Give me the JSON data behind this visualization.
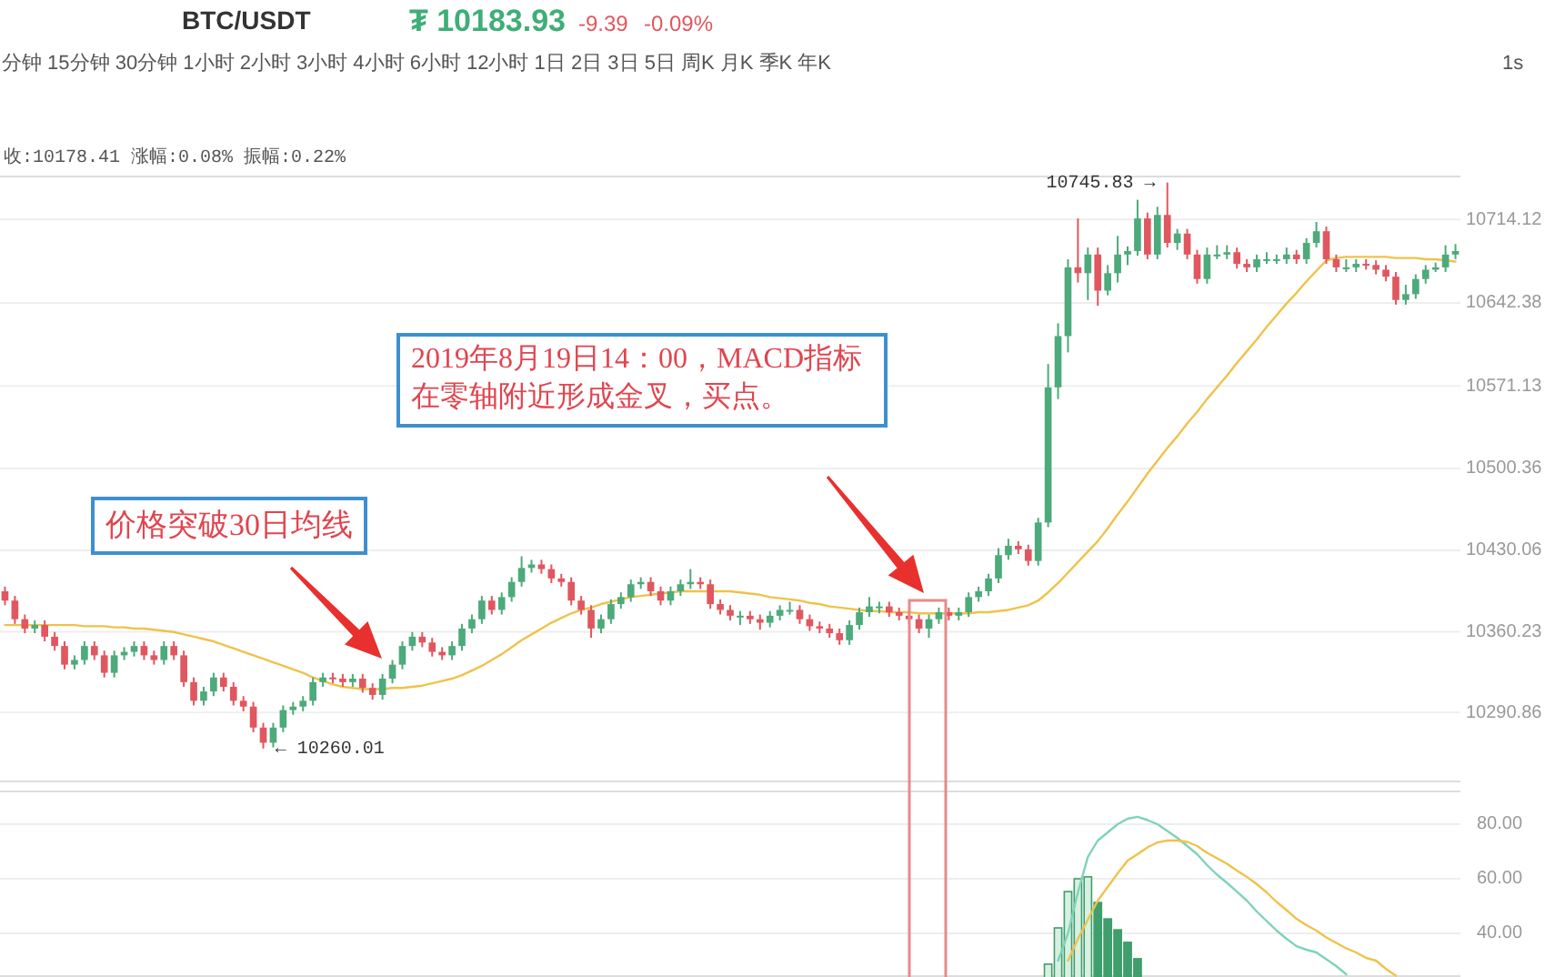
{
  "chart_data": [
    {
      "type": "candlestick",
      "title": "BTC/USDT",
      "categories": [
        null,
        null,
        null,
        null,
        null,
        null,
        null,
        null,
        null,
        null,
        null,
        null,
        null,
        null,
        null,
        null,
        null,
        null,
        null,
        null,
        null,
        null,
        null,
        null,
        null,
        null,
        null,
        null,
        null,
        null,
        null,
        null,
        null,
        null,
        null,
        null,
        null,
        null,
        null,
        null,
        null,
        null,
        null,
        null,
        null,
        null,
        null,
        null,
        null,
        null,
        null,
        null,
        null,
        null,
        null,
        null,
        null,
        null,
        null,
        null,
        null,
        null,
        null,
        null,
        null,
        null,
        null,
        null,
        null,
        null,
        null,
        null,
        null,
        null,
        null,
        null,
        null,
        null,
        null,
        null,
        null,
        null,
        null,
        null,
        null,
        null,
        null,
        null,
        null,
        null,
        null,
        null,
        null,
        null,
        null,
        null,
        null,
        null,
        null,
        null,
        null,
        null,
        null,
        null,
        null,
        null,
        null,
        null,
        null,
        null,
        null,
        null,
        null,
        null,
        null,
        null,
        null,
        null,
        null,
        null,
        null,
        null,
        null,
        null,
        null,
        null,
        null,
        null,
        null,
        null,
        null,
        null,
        null,
        null,
        null,
        null,
        null,
        null,
        null,
        null,
        null,
        null,
        null,
        null,
        null,
        null,
        null
      ],
      "ohlc": [
        [
          10395,
          10399,
          10383,
          10387
        ],
        [
          10387,
          10391,
          10367,
          10371
        ],
        [
          10371,
          10375,
          10359,
          10363
        ],
        [
          10363,
          10370,
          10359,
          10366
        ],
        [
          10366,
          10370,
          10352,
          10356
        ],
        [
          10356,
          10360,
          10344,
          10348
        ],
        [
          10348,
          10352,
          10328,
          10332
        ],
        [
          10332,
          10340,
          10328,
          10336
        ],
        [
          10336,
          10352,
          10332,
          10348
        ],
        [
          10348,
          10352,
          10336,
          10340
        ],
        [
          10340,
          10344,
          10321,
          10325
        ],
        [
          10325,
          10344,
          10321,
          10340
        ],
        [
          10340,
          10347,
          10336,
          10343
        ],
        [
          10343,
          10352,
          10339,
          10348
        ],
        [
          10348,
          10352,
          10336,
          10340
        ],
        [
          10340,
          10344,
          10332,
          10336
        ],
        [
          10336,
          10352,
          10332,
          10348
        ],
        [
          10348,
          10352,
          10336,
          10340
        ],
        [
          10340,
          10344,
          10313,
          10317
        ],
        [
          10317,
          10321,
          10297,
          10301
        ],
        [
          10301,
          10313,
          10297,
          10309
        ],
        [
          10309,
          10325,
          10305,
          10321
        ],
        [
          10321,
          10325,
          10309,
          10313
        ],
        [
          10313,
          10317,
          10297,
          10301
        ],
        [
          10301,
          10305,
          10292,
          10296
        ],
        [
          10296,
          10300,
          10274,
          10278
        ],
        [
          10278,
          10282,
          10260.01,
          10265
        ],
        [
          10265,
          10282,
          10261,
          10278
        ],
        [
          10278,
          10297,
          10274,
          10293
        ],
        [
          10293,
          10300,
          10289,
          10296
        ],
        [
          10296,
          10305,
          10292,
          10301
        ],
        [
          10301,
          10321,
          10297,
          10317
        ],
        [
          10317,
          10325,
          10313,
          10321
        ],
        [
          10321,
          10325,
          10316,
          10320
        ],
        [
          10320,
          10324,
          10313,
          10317
        ],
        [
          10317,
          10324,
          10313,
          10320
        ],
        [
          10320,
          10324,
          10308,
          10312
        ],
        [
          10312,
          10316,
          10302,
          10306
        ],
        [
          10306,
          10324,
          10302,
          10320
        ],
        [
          10320,
          10336,
          10316,
          10332
        ],
        [
          10332,
          10352,
          10328,
          10348
        ],
        [
          10348,
          10360,
          10344,
          10356
        ],
        [
          10356,
          10360,
          10347,
          10351
        ],
        [
          10351,
          10355,
          10339,
          10343
        ],
        [
          10343,
          10347,
          10336,
          10340
        ],
        [
          10340,
          10352,
          10336,
          10348
        ],
        [
          10348,
          10367,
          10344,
          10363
        ],
        [
          10363,
          10375,
          10359,
          10371
        ],
        [
          10371,
          10391,
          10367,
          10387
        ],
        [
          10387,
          10391,
          10375,
          10379
        ],
        [
          10379,
          10394,
          10375,
          10390
        ],
        [
          10390,
          10407,
          10386,
          10403
        ],
        [
          10403,
          10425,
          10399,
          10415
        ],
        [
          10415,
          10422,
          10411,
          10418
        ],
        [
          10418,
          10422,
          10410,
          10414
        ],
        [
          10414,
          10418,
          10402,
          10406
        ],
        [
          10406,
          10410,
          10399,
          10403
        ],
        [
          10403,
          10407,
          10383,
          10387
        ],
        [
          10387,
          10391,
          10375,
          10379
        ],
        [
          10379,
          10383,
          10355,
          10363
        ],
        [
          10363,
          10375,
          10359,
          10371
        ],
        [
          10371,
          10388,
          10367,
          10384
        ],
        [
          10384,
          10394,
          10380,
          10390
        ],
        [
          10390,
          10405,
          10386,
          10401
        ],
        [
          10401,
          10407,
          10397,
          10403
        ],
        [
          10403,
          10407,
          10391,
          10395
        ],
        [
          10395,
          10399,
          10383,
          10387
        ],
        [
          10387,
          10399,
          10383,
          10395
        ],
        [
          10395,
          10405,
          10391,
          10401
        ],
        [
          10401,
          10414,
          10397,
          10403
        ],
        [
          10403,
          10407,
          10397,
          10401
        ],
        [
          10401,
          10405,
          10380,
          10384
        ],
        [
          10384,
          10388,
          10375,
          10379
        ],
        [
          10379,
          10383,
          10370,
          10374
        ],
        [
          10374,
          10378,
          10366,
          10374
        ],
        [
          10374,
          10378,
          10367,
          10371
        ],
        [
          10371,
          10375,
          10362,
          10368
        ],
        [
          10368,
          10378,
          10364,
          10374
        ],
        [
          10374,
          10383,
          10370,
          10379
        ],
        [
          10379,
          10386,
          10375,
          10379
        ],
        [
          10379,
          10383,
          10367,
          10371
        ],
        [
          10371,
          10375,
          10361,
          10365
        ],
        [
          10365,
          10369,
          10359,
          10363
        ],
        [
          10363,
          10367,
          10355,
          10359
        ],
        [
          10359,
          10363,
          10349,
          10353
        ],
        [
          10353,
          10370,
          10349,
          10366
        ],
        [
          10366,
          10381,
          10362,
          10377
        ],
        [
          10377,
          10390,
          10373,
          10382
        ],
        [
          10382,
          10386,
          10376,
          10382
        ],
        [
          10382,
          10386,
          10373,
          10377
        ],
        [
          10377,
          10381,
          10370,
          10374
        ],
        [
          10374,
          10378,
          10367,
          10371
        ],
        [
          10371,
          10375,
          10359,
          10363
        ],
        [
          10363,
          10375,
          10355,
          10371
        ],
        [
          10371,
          10381,
          10367,
          10377
        ],
        [
          10377,
          10381,
          10370,
          10374
        ],
        [
          10374,
          10381,
          10370,
          10377
        ],
        [
          10377,
          10394,
          10373,
          10390
        ],
        [
          10390,
          10399,
          10386,
          10395
        ],
        [
          10395,
          10410,
          10391,
          10406
        ],
        [
          10406,
          10432,
          10402,
          10426
        ],
        [
          10426,
          10440,
          10422,
          10434
        ],
        [
          10434,
          10438,
          10427,
          10431
        ],
        [
          10431,
          10435,
          10417,
          10421
        ],
        [
          10421,
          10458,
          10417,
          10454
        ],
        [
          10454,
          10590,
          10450,
          10570
        ],
        [
          10570,
          10625,
          10560,
          10614
        ],
        [
          10614,
          10680,
          10600,
          10673
        ],
        [
          10673,
          10715,
          10660,
          10668
        ],
        [
          10668,
          10690,
          10645,
          10684
        ],
        [
          10684,
          10690,
          10640,
          10653
        ],
        [
          10653,
          10675,
          10649,
          10668
        ],
        [
          10668,
          10700,
          10660,
          10684
        ],
        [
          10684,
          10691,
          10675,
          10687
        ],
        [
          10687,
          10731,
          10683,
          10715
        ],
        [
          10715,
          10720,
          10680,
          10684
        ],
        [
          10684,
          10725,
          10680,
          10718
        ],
        [
          10718,
          10745.83,
          10690,
          10694
        ],
        [
          10694,
          10706,
          10688,
          10702
        ],
        [
          10702,
          10706,
          10680,
          10684
        ],
        [
          10684,
          10688,
          10659,
          10663
        ],
        [
          10663,
          10690,
          10659,
          10684
        ],
        [
          10684,
          10692,
          10680,
          10684
        ],
        [
          10684,
          10692,
          10680,
          10686
        ],
        [
          10686,
          10690,
          10672,
          10676
        ],
        [
          10676,
          10680,
          10669,
          10673
        ],
        [
          10673,
          10684,
          10669,
          10680
        ],
        [
          10680,
          10686,
          10676,
          10680
        ],
        [
          10680,
          10684,
          10676,
          10680
        ],
        [
          10680,
          10690,
          10676,
          10684
        ],
        [
          10684,
          10688,
          10676,
          10680
        ],
        [
          10680,
          10698,
          10676,
          10694
        ],
        [
          10694,
          10712,
          10690,
          10704
        ],
        [
          10704,
          10708,
          10676,
          10680
        ],
        [
          10680,
          10684,
          10669,
          10673
        ],
        [
          10673,
          10680,
          10669,
          10673
        ],
        [
          10673,
          10680,
          10669,
          10676
        ],
        [
          10676,
          10680,
          10671,
          10675
        ],
        [
          10675,
          10679,
          10667,
          10671
        ],
        [
          10671,
          10675,
          10661,
          10665
        ],
        [
          10665,
          10669,
          10641,
          10645
        ],
        [
          10645,
          10658,
          10641,
          10650
        ],
        [
          10650,
          10667,
          10646,
          10663
        ],
        [
          10663,
          10675,
          10659,
          10671
        ],
        [
          10671,
          10677,
          10669,
          10673
        ],
        [
          10673,
          10692,
          10669,
          10684
        ],
        [
          10684,
          10693,
          10680,
          10687
        ]
      ],
      "colors": [
        "#e0575f",
        "#e0575f",
        "#e0575f",
        "#4daa7a",
        "#e0575f",
        "#e0575f",
        "#e0575f",
        "#4daa7a",
        "#4daa7a",
        "#e0575f",
        "#e0575f",
        "#4daa7a",
        "#4daa7a",
        "#4daa7a",
        "#e0575f",
        "#e0575f",
        "#4daa7a",
        "#e0575f",
        "#e0575f",
        "#e0575f",
        "#4daa7a",
        "#4daa7a",
        "#e0575f",
        "#e0575f",
        "#e0575f",
        "#e0575f",
        "#e0575f",
        "#4daa7a",
        "#4daa7a",
        "#4daa7a",
        "#4daa7a",
        "#4daa7a",
        "#4daa7a",
        "#e0575f",
        "#e0575f",
        "#4daa7a",
        "#e0575f",
        "#e0575f",
        "#4daa7a",
        "#4daa7a",
        "#4daa7a",
        "#4daa7a",
        "#e0575f",
        "#e0575f",
        "#e0575f",
        "#4daa7a",
        "#4daa7a",
        "#4daa7a",
        "#4daa7a",
        "#e0575f",
        "#4daa7a",
        "#4daa7a",
        "#4daa7a",
        "#4daa7a",
        "#e0575f",
        "#e0575f",
        "#e0575f",
        "#e0575f",
        "#e0575f",
        "#e0575f",
        "#4daa7a",
        "#4daa7a",
        "#4daa7a",
        "#4daa7a",
        "#4daa7a",
        "#e0575f",
        "#e0575f",
        "#4daa7a",
        "#4daa7a",
        "#4daa7a",
        "#e0575f",
        "#e0575f",
        "#e0575f",
        "#e0575f",
        "#4daa7a",
        "#e0575f",
        "#e0575f",
        "#4daa7a",
        "#4daa7a",
        "#4daa7a",
        "#e0575f",
        "#e0575f",
        "#e0575f",
        "#e0575f",
        "#e0575f",
        "#4daa7a",
        "#4daa7a",
        "#4daa7a",
        "#4daa7a",
        "#e0575f",
        "#e0575f",
        "#e0575f",
        "#e0575f",
        "#4daa7a",
        "#4daa7a",
        "#e0575f",
        "#4daa7a",
        "#4daa7a",
        "#4daa7a",
        "#4daa7a",
        "#4daa7a",
        "#4daa7a",
        "#e0575f",
        "#e0575f",
        "#4daa7a",
        "#4daa7a",
        "#4daa7a",
        "#4daa7a",
        "#e0575f",
        "#4daa7a",
        "#e0575f",
        "#4daa7a",
        "#4daa7a",
        "#4daa7a",
        "#4daa7a",
        "#e0575f",
        "#4daa7a",
        "#e0575f",
        "#4daa7a",
        "#e0575f",
        "#e0575f",
        "#4daa7a",
        "#4daa7a",
        "#4daa7a",
        "#e0575f",
        "#e0575f",
        "#4daa7a",
        "#4daa7a",
        "#4daa7a",
        "#4daa7a",
        "#e0575f",
        "#4daa7a",
        "#4daa7a",
        "#e0575f",
        "#e0575f",
        "#4daa7a",
        "#4daa7a",
        "#e0575f",
        "#e0575f",
        "#e0575f",
        "#e0575f",
        "#4daa7a",
        "#4daa7a",
        "#4daa7a",
        "#4daa7a",
        "#4daa7a",
        "#4daa7a"
      ],
      "series": [
        {
          "type": "line",
          "color": "#f0c24a",
          "values": [
            10366,
            10366,
            10366,
            10366,
            10366,
            10366,
            10366,
            10366,
            10365,
            10365,
            10365,
            10364,
            10364,
            10363,
            10363,
            10362,
            10361,
            10360,
            10358,
            10356,
            10354,
            10352,
            10349,
            10346,
            10343,
            10340,
            10337,
            10334,
            10331,
            10328,
            10325,
            10321,
            10318,
            10315,
            10313,
            10312,
            10311,
            10311,
            10311,
            10312,
            10312,
            10313,
            10314,
            10316,
            10318,
            10320,
            10323,
            10327,
            10331,
            10336,
            10341,
            10347,
            10353,
            10358,
            10363,
            10368,
            10372,
            10376,
            10379,
            10381,
            10384,
            10386,
            10388,
            10390,
            10391,
            10392,
            10393,
            10394,
            10395,
            10395,
            10395,
            10395,
            10395,
            10395,
            10394,
            10393,
            10392,
            10390,
            10389,
            10388,
            10387,
            10385,
            10384,
            10382,
            10381,
            10380,
            10379,
            10378,
            10378,
            10377,
            10377,
            10377,
            10376,
            10376,
            10376,
            10376,
            10376,
            10376,
            10377,
            10377,
            10378,
            10379,
            10381,
            10383,
            10387,
            10394,
            10402,
            10411,
            10420,
            10429,
            10438,
            10449,
            10461,
            10472,
            10484,
            10496,
            10507,
            10518,
            10528,
            10539,
            10549,
            10560,
            10570,
            10580,
            10591,
            10601,
            10611,
            10622,
            10632,
            10642,
            10651,
            10661,
            10670,
            10679,
            10681,
            10682,
            10682,
            10682,
            10682,
            10682,
            10681,
            10681,
            10681,
            10680,
            10680,
            10679,
            10678
          ]
        }
      ],
      "ylim": [
        10231,
        10751
      ],
      "yticks": [
        {
          "value": 10714.12,
          "label": "10714.12"
        },
        {
          "value": 10642.38,
          "label": "10642.38"
        },
        {
          "value": 10571.13,
          "label": "10571.13"
        },
        {
          "value": 10500.36,
          "label": "10500.36"
        },
        {
          "value": 10430.06,
          "label": "10430.06"
        },
        {
          "value": 10360.23,
          "label": "10360.23"
        },
        {
          "value": 10290.86,
          "label": "10290.86"
        }
      ],
      "grid": "y",
      "annotations": [
        "₮ 10183.93",
        "-9.39",
        "-0.09%",
        "分钟 15分钟 30分钟 1小时 2小时 3小时 4小时 6小时 12小时 1日 2日 3日 5日 周K 月K 季K 年K",
        "1s",
        "收:10178.41 涨幅:0.08% 振幅:0.22%",
        "2019年8月19日14：00，MACD指标在零轴附近形成金叉，买点。",
        "价格突破30日均线",
        "10745.83 →",
        "← 10260.01"
      ]
    },
    {
      "type": "bar",
      "categories": [
        null,
        null,
        null,
        null,
        null,
        null,
        null,
        null,
        null,
        null,
        null,
        null,
        null,
        null,
        null,
        null,
        null,
        null,
        null,
        null,
        null,
        null,
        null,
        null,
        null,
        null,
        null,
        null,
        null,
        null,
        null,
        null,
        null,
        null,
        null,
        null,
        null,
        null,
        null,
        null,
        null,
        null,
        null,
        null,
        null,
        null,
        null,
        null,
        null,
        null,
        null,
        null,
        null,
        null,
        null,
        null,
        null,
        null,
        null,
        null,
        null,
        null,
        null,
        null,
        null,
        null,
        null,
        null,
        null,
        null,
        null,
        null,
        null,
        null,
        null,
        null,
        null,
        null,
        null,
        null,
        null,
        null,
        null,
        null,
        null,
        null,
        null,
        null,
        null,
        null,
        null,
        null,
        null,
        null,
        null,
        null,
        null,
        null,
        null,
        null,
        null,
        null,
        null,
        null,
        null,
        null,
        null,
        null,
        null,
        null,
        null,
        null,
        null,
        null,
        null,
        null,
        null,
        null,
        null,
        null,
        null,
        null,
        null,
        null,
        null,
        null,
        null,
        null,
        null,
        null,
        null,
        null,
        null,
        null,
        null,
        null,
        null,
        null,
        null,
        null,
        null,
        null,
        null,
        null,
        null,
        null,
        null
      ],
      "series": [
        {
          "type": "bar",
          "color": "#d7f0e2",
          "values": [
            null,
            null,
            null,
            null,
            null,
            null,
            null,
            null,
            null,
            null,
            null,
            null,
            null,
            null,
            null,
            null,
            null,
            null,
            null,
            null,
            null,
            null,
            null,
            null,
            null,
            null,
            null,
            null,
            null,
            null,
            null,
            null,
            null,
            null,
            null,
            null,
            null,
            null,
            null,
            null,
            null,
            null,
            null,
            null,
            null,
            null,
            null,
            null,
            null,
            null,
            null,
            null,
            null,
            null,
            null,
            null,
            null,
            null,
            null,
            null,
            null,
            null,
            null,
            null,
            null,
            null,
            null,
            null,
            null,
            null,
            null,
            null,
            null,
            null,
            null,
            null,
            null,
            null,
            null,
            null,
            null,
            null,
            null,
            null,
            null,
            null,
            null,
            null,
            null,
            null,
            null,
            null,
            null,
            null,
            null,
            null,
            null,
            null,
            null,
            null,
            null,
            null,
            null,
            null,
            null,
            28.7,
            42,
            55.3,
            60,
            60.7,
            null,
            null,
            null,
            null,
            null,
            null,
            null,
            null,
            null,
            null,
            null,
            null,
            null,
            null,
            null,
            null,
            null,
            null,
            null,
            null,
            null,
            null,
            null,
            null,
            null,
            null,
            null,
            null,
            null,
            null,
            null,
            null,
            null,
            null,
            null,
            null,
            null
          ]
        },
        {
          "type": "bar",
          "color": "#3f9e6c",
          "values": [
            null,
            null,
            null,
            null,
            null,
            null,
            null,
            null,
            null,
            null,
            null,
            null,
            null,
            null,
            null,
            null,
            null,
            null,
            null,
            null,
            null,
            null,
            null,
            null,
            null,
            null,
            null,
            null,
            null,
            null,
            null,
            null,
            null,
            null,
            null,
            null,
            null,
            null,
            null,
            null,
            null,
            null,
            null,
            null,
            null,
            null,
            null,
            null,
            null,
            null,
            null,
            null,
            null,
            null,
            null,
            null,
            null,
            null,
            null,
            null,
            null,
            null,
            null,
            null,
            null,
            null,
            null,
            null,
            null,
            null,
            null,
            null,
            null,
            null,
            null,
            null,
            null,
            null,
            null,
            null,
            null,
            null,
            null,
            null,
            null,
            null,
            null,
            null,
            null,
            null,
            null,
            null,
            null,
            null,
            null,
            null,
            null,
            null,
            null,
            null,
            null,
            null,
            null,
            null,
            null,
            null,
            null,
            null,
            null,
            null,
            51.3,
            45.3,
            41.3,
            36.7,
            30.7,
            null,
            null,
            null,
            null,
            null,
            null,
            null,
            null,
            null,
            null,
            null,
            null,
            null,
            null,
            null,
            null,
            null,
            null,
            null,
            null,
            null,
            null,
            null,
            null,
            null,
            null,
            null,
            null,
            null,
            null,
            null,
            null
          ]
        },
        {
          "type": "line",
          "color": "#7fd3b8",
          "values": [
            null,
            null,
            null,
            null,
            null,
            null,
            null,
            null,
            null,
            null,
            null,
            null,
            null,
            null,
            null,
            null,
            null,
            null,
            null,
            null,
            null,
            null,
            null,
            null,
            null,
            null,
            null,
            null,
            null,
            null,
            null,
            null,
            null,
            null,
            null,
            null,
            null,
            null,
            null,
            null,
            null,
            null,
            null,
            null,
            null,
            null,
            null,
            null,
            null,
            null,
            null,
            null,
            null,
            null,
            null,
            null,
            null,
            null,
            null,
            null,
            null,
            null,
            null,
            null,
            null,
            null,
            null,
            null,
            null,
            null,
            null,
            null,
            null,
            null,
            null,
            null,
            null,
            null,
            null,
            null,
            null,
            null,
            null,
            null,
            null,
            null,
            null,
            null,
            null,
            null,
            null,
            null,
            null,
            null,
            null,
            null,
            null,
            null,
            null,
            null,
            null,
            null,
            null,
            null,
            null,
            null,
            30,
            40,
            55,
            68,
            74,
            77,
            80,
            82,
            82.7,
            81.5,
            80,
            77.5,
            75,
            72,
            69,
            65,
            61.5,
            58.5,
            55.3,
            52,
            48,
            44.5,
            41,
            38,
            35.3,
            34,
            33,
            30.5,
            28,
            25,
            null,
            null,
            null,
            null,
            null,
            null,
            null,
            null,
            null,
            null,
            null
          ]
        },
        {
          "type": "line",
          "color": "#f0c24a",
          "values": [
            null,
            null,
            null,
            null,
            null,
            null,
            null,
            null,
            null,
            null,
            null,
            null,
            null,
            null,
            null,
            null,
            null,
            null,
            null,
            null,
            null,
            null,
            null,
            null,
            null,
            null,
            null,
            null,
            null,
            null,
            null,
            null,
            null,
            null,
            null,
            null,
            null,
            null,
            null,
            null,
            null,
            null,
            null,
            null,
            null,
            null,
            null,
            null,
            null,
            null,
            null,
            null,
            null,
            null,
            null,
            null,
            null,
            null,
            null,
            null,
            null,
            null,
            null,
            null,
            null,
            null,
            null,
            null,
            null,
            null,
            null,
            null,
            null,
            null,
            null,
            null,
            null,
            null,
            null,
            null,
            null,
            null,
            null,
            null,
            null,
            null,
            null,
            null,
            null,
            null,
            null,
            null,
            null,
            null,
            null,
            null,
            null,
            null,
            null,
            null,
            null,
            null,
            null,
            null,
            null,
            null,
            null,
            30,
            38,
            45,
            52,
            57,
            62,
            66.7,
            69,
            71.5,
            73.3,
            74,
            74,
            73.5,
            72,
            69.5,
            67.5,
            65.5,
            63,
            60.7,
            58,
            55,
            51.5,
            48.5,
            45.3,
            43,
            41,
            38.5,
            36.5,
            34.5,
            33,
            31,
            30,
            27,
            24.5,
            null,
            null,
            null,
            null,
            null,
            null
          ]
        }
      ],
      "ylim": [
        24,
        92
      ],
      "yticks": [
        {
          "value": 80,
          "label": "80.00"
        },
        {
          "value": 60,
          "label": "60.00"
        },
        {
          "value": 40,
          "label": "40.00"
        }
      ],
      "grid": "y"
    }
  ]
}
